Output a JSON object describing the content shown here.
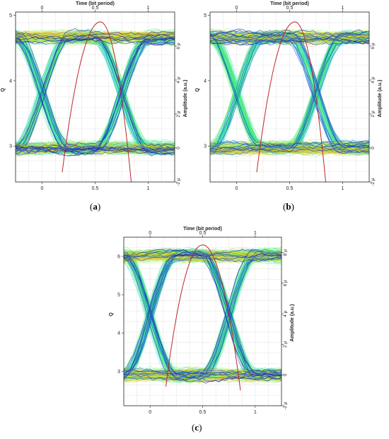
{
  "chart_data": [
    {
      "type": "eye-diagram",
      "panel_label": "a",
      "xlabel_top": "Time (bit period)",
      "ylabel_left": "Q",
      "ylabel_right": "Amplitude (a.u.)",
      "xlim": [
        -0.25,
        1.25
      ],
      "x_ticks_top": [
        "0",
        "0.5",
        "1"
      ],
      "x_ticks_bottom": [
        "0",
        "0.5",
        "1"
      ],
      "ylim_left": [
        2.45,
        5.05
      ],
      "y_ticks_left": [
        "3",
        "4",
        "5"
      ],
      "ylim_right": [
        -2,
        8
      ],
      "y_ticks_right": [
        "-2 μ",
        "0",
        "2 μ",
        "4 μ",
        "6 μ"
      ],
      "levels": {
        "one": 6.5,
        "zero": 0
      },
      "q_curve": {
        "x": [
          0.19,
          0.55,
          0.84
        ],
        "y": [
          2.6,
          4.9,
          2.45
        ]
      },
      "grid": true
    },
    {
      "type": "eye-diagram",
      "panel_label": "b",
      "xlabel_top": "Time (bit period)",
      "ylabel_left": "Q",
      "ylabel_right": "Amplitude (a.u.)",
      "xlim": [
        -0.25,
        1.25
      ],
      "x_ticks_top": [
        "0",
        "0.5",
        "1"
      ],
      "x_ticks_bottom": [
        "0",
        "0.5",
        "1"
      ],
      "ylim_left": [
        2.45,
        5.05
      ],
      "y_ticks_left": [
        "3",
        "4",
        "5"
      ],
      "ylim_right": [
        -2,
        8
      ],
      "y_ticks_right": [
        "-2 μ",
        "0",
        "2 μ",
        "4 μ",
        "6 μ"
      ],
      "levels": {
        "one": 6.5,
        "zero": 0
      },
      "q_curve": {
        "x": [
          0.19,
          0.55,
          0.84
        ],
        "y": [
          2.6,
          4.9,
          2.45
        ]
      },
      "grid": true
    },
    {
      "type": "eye-diagram",
      "panel_label": "c",
      "xlabel_top": "Time (bit period)",
      "ylabel_left": "Q",
      "ylabel_right": "Amplitude (a.u.)",
      "xlim": [
        -0.25,
        1.25
      ],
      "x_ticks_top": [
        "0",
        "0.5",
        "1"
      ],
      "x_ticks_bottom": [
        "0",
        "0.5",
        "1"
      ],
      "ylim_left": [
        2.1,
        6.5
      ],
      "y_ticks_left": [
        "3",
        "4",
        "5",
        "6"
      ],
      "ylim_right": [
        -2,
        9
      ],
      "y_ticks_right": [
        "-2 μ",
        "0",
        "2 μ",
        "4 μ",
        "6 μ",
        "8 μ"
      ],
      "levels": {
        "one": 7.8,
        "zero": 0
      },
      "q_curve": {
        "x": [
          0.15,
          0.5,
          0.86
        ],
        "y": [
          2.6,
          6.3,
          2.5
        ]
      },
      "grid": true
    }
  ]
}
